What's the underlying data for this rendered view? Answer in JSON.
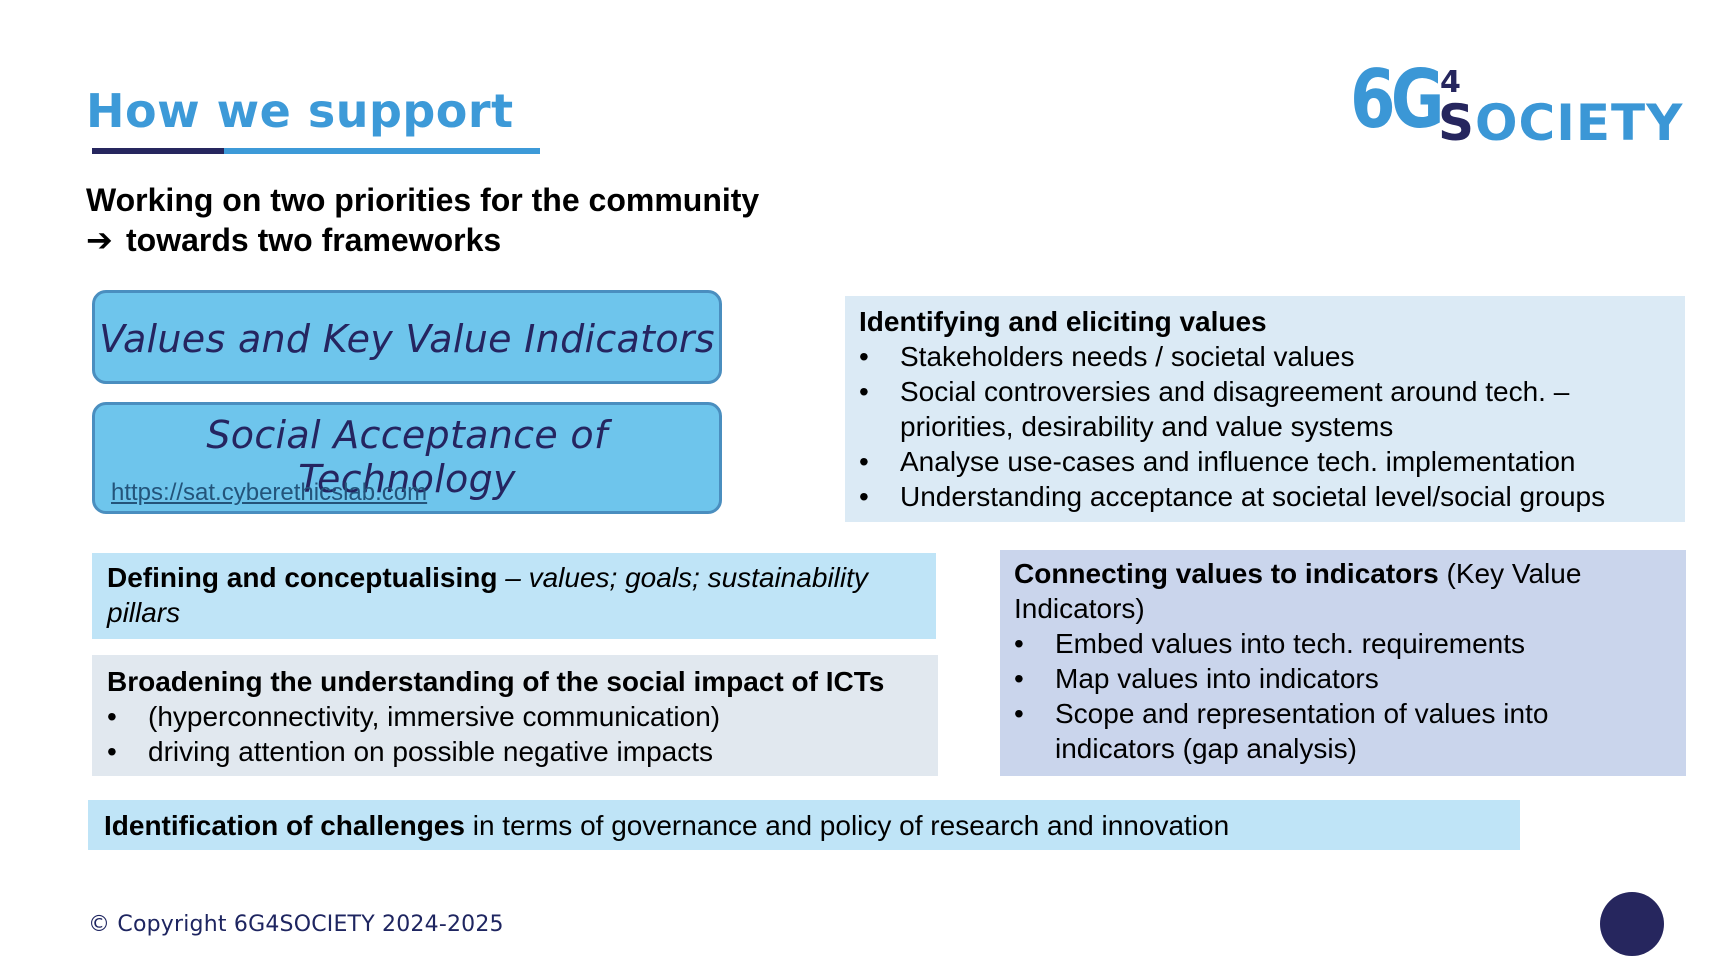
{
  "slide": {
    "title": "How we support",
    "subtitle_line1": "Working on two priorities for the community",
    "subtitle_arrow": "➔",
    "subtitle_line2": "towards two frameworks"
  },
  "logo": {
    "part1": "6G",
    "part2": "4",
    "part3_first": "S",
    "part3_rest": "OCIETY"
  },
  "frameworks": [
    {
      "title": "Values and Key Value Indicators"
    },
    {
      "title": "Social Acceptance of Technology",
      "link": "https://sat.cyberethicslab.com"
    }
  ],
  "identifying": {
    "heading": "Identifying and eliciting values",
    "bullets": [
      "Stakeholders needs / societal values",
      "Social controversies and disagreement around tech. – priorities, desirability and value systems",
      "Analyse use-cases and influence tech. implementation",
      "Understanding acceptance at societal level/social groups"
    ]
  },
  "defining": {
    "heading": "Defining and conceptualising",
    "rest": " – values; goals; sustainability pillars"
  },
  "broadening": {
    "heading": "Broadening the understanding of the social impact of ICTs",
    "bullets": [
      "(hyperconnectivity, immersive communication)",
      "driving attention on possible negative impacts"
    ]
  },
  "connecting": {
    "heading": "Connecting values to indicators",
    "heading_rest": " (Key Value Indicators)",
    "bullets": [
      "Embed values into tech. requirements",
      "Map values into indicators",
      "Scope and representation of values into indicators (gap analysis)"
    ]
  },
  "challenges": {
    "heading": "Identification of challenges",
    "rest": " in terms of governance and policy of research and innovation"
  },
  "footer": {
    "copyright": "© Copyright 6G4SOCIETY 2024-2025"
  },
  "colors": {
    "accent_blue": "#3d9ad8",
    "navy": "#26265e",
    "framework_box": "#6ec5ec"
  }
}
